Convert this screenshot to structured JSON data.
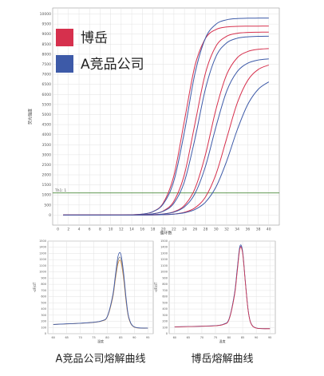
{
  "chart_data": [
    {
      "type": "line",
      "x_label": "循环数",
      "y_label": "荧光强度",
      "xlim": [
        -1,
        42
      ],
      "ylim": [
        -500,
        10300
      ],
      "xticks": [
        0,
        2,
        4,
        6,
        8,
        10,
        12,
        14,
        16,
        18,
        20,
        22,
        24,
        26,
        28,
        30,
        32,
        34,
        36,
        38,
        40
      ],
      "yticks": [
        0,
        500,
        1000,
        1500,
        2000,
        2500,
        3000,
        3500,
        4000,
        4500,
        5000,
        5500,
        6000,
        6500,
        7000,
        7500,
        8000,
        8500,
        9000,
        9500,
        10000
      ],
      "grid": true,
      "threshold": {
        "value": 1100,
        "label": "Th1: 1",
        "color": "#4a8a3a"
      },
      "x": [
        1,
        4,
        7,
        10,
        13,
        16,
        18,
        20,
        22,
        24,
        26,
        28,
        30,
        32,
        34,
        36,
        38,
        40
      ],
      "series": [
        {
          "name": "博岳",
          "color": "#d6304d",
          "values": [
            0,
            0,
            0,
            1,
            6,
            45,
            169,
            611,
            1965,
            4700,
            7435,
            8789,
            9231,
            9355,
            9388,
            9397,
            9399,
            9400
          ]
        },
        {
          "name": "A竞品公司",
          "color": "#3d5aa8",
          "values": [
            0,
            0,
            0,
            1,
            7,
            48,
            166,
            559,
            1705,
            4145,
            7046,
            8810,
            9496,
            9712,
            9774,
            9792,
            9797,
            9800
          ]
        },
        {
          "name": "博岳",
          "color": "#d6304d",
          "values": [
            0,
            0,
            0,
            0,
            3,
            17,
            61,
            209,
            692,
            2029,
            4550,
            7071,
            8408,
            8891,
            9039,
            9083,
            9095,
            9099
          ]
        },
        {
          "name": "A竞品公司",
          "color": "#3d5aa8",
          "values": [
            0,
            0,
            0,
            0,
            3,
            18,
            60,
            191,
            588,
            1665,
            3800,
            6292,
            7894,
            8562,
            8793,
            8867,
            8889,
            8897
          ]
        },
        {
          "name": "博岳",
          "color": "#d6304d",
          "values": [
            0,
            0,
            0,
            0,
            1,
            6,
            18,
            56,
            166,
            481,
            1320,
            3021,
            5279,
            6980,
            7819,
            8134,
            8244,
            8282
          ]
        },
        {
          "name": "A竞品公司",
          "color": "#3d5aa8",
          "values": [
            0,
            0,
            0,
            0,
            1,
            6,
            18,
            52,
            147,
            410,
            1068,
            2434,
            4407,
            6154,
            7129,
            7551,
            7712,
            7769
          ]
        },
        {
          "name": "博岳",
          "color": "#d6304d",
          "values": [
            0,
            0,
            0,
            0,
            0,
            3,
            7,
            19,
            51,
            137,
            360,
            906,
            2044,
            3800,
            5556,
            6694,
            7240,
            7463
          ]
        },
        {
          "name": "A竞品公司",
          "color": "#3d5aa8",
          "values": [
            0,
            0,
            0,
            0,
            0,
            3,
            8,
            19,
            46,
            114,
            276,
            645,
            1405,
            2675,
            4225,
            5495,
            6255,
            6624
          ]
        }
      ]
    },
    {
      "type": "line",
      "caption": "A竞品公司熔解曲线",
      "x_label": "温度",
      "y_label": "-dF/dT",
      "xlim": [
        58,
        97
      ],
      "ylim": [
        0,
        1500
      ],
      "xticks": [
        60,
        65,
        70,
        75,
        80,
        85,
        90,
        95
      ],
      "yticks": [
        0,
        100,
        200,
        300,
        400,
        500,
        600,
        700,
        800,
        900,
        1000,
        1100,
        1200,
        1300,
        1400,
        1500
      ],
      "grid": true,
      "x": [
        60,
        65,
        70,
        75,
        78,
        80,
        82,
        83,
        84,
        85,
        86,
        87,
        88,
        90,
        95
      ],
      "series": [
        {
          "color": "#d98c3a",
          "values": [
            150,
            158,
            168,
            182,
            205,
            270,
            580,
            880,
            1140,
            1170,
            900,
            500,
            240,
            105,
            88
          ]
        },
        {
          "color": "#888888",
          "values": [
            148,
            159,
            169,
            184,
            208,
            275,
            600,
            910,
            1190,
            1220,
            950,
            530,
            250,
            108,
            89
          ]
        },
        {
          "color": "#3a56a8",
          "values": [
            150,
            160,
            170,
            185,
            210,
            280,
            620,
            950,
            1260,
            1290,
            1000,
            560,
            260,
            110,
            90
          ]
        }
      ]
    },
    {
      "type": "line",
      "caption": "博岳熔解曲线",
      "x_label": "温度",
      "y_label": "-dF/dT",
      "xlim": [
        58,
        97
      ],
      "ylim": [
        0,
        1500
      ],
      "xticks": [
        60,
        65,
        70,
        75,
        80,
        85,
        90,
        95
      ],
      "yticks": [
        0,
        100,
        200,
        300,
        400,
        500,
        600,
        700,
        800,
        900,
        1000,
        1100,
        1200,
        1300,
        1400,
        1500
      ],
      "grid": true,
      "x": [
        60,
        65,
        70,
        75,
        78,
        80,
        82,
        83,
        84,
        85,
        86,
        87,
        88,
        90,
        95
      ],
      "series": [
        {
          "color": "#8a4fa0",
          "values": [
            111,
            115,
            121,
            129,
            152,
            235,
            640,
            1030,
            1400,
            1310,
            830,
            385,
            172,
            91,
            81
          ]
        },
        {
          "color": "#3d5aa8",
          "values": [
            112,
            116,
            122,
            130,
            155,
            240,
            650,
            1050,
            1420,
            1330,
            840,
            390,
            175,
            92,
            82
          ]
        },
        {
          "color": "#d4374f",
          "values": [
            110,
            115,
            120,
            128,
            150,
            230,
            620,
            1000,
            1380,
            1300,
            820,
            380,
            170,
            90,
            80
          ]
        }
      ]
    }
  ]
}
